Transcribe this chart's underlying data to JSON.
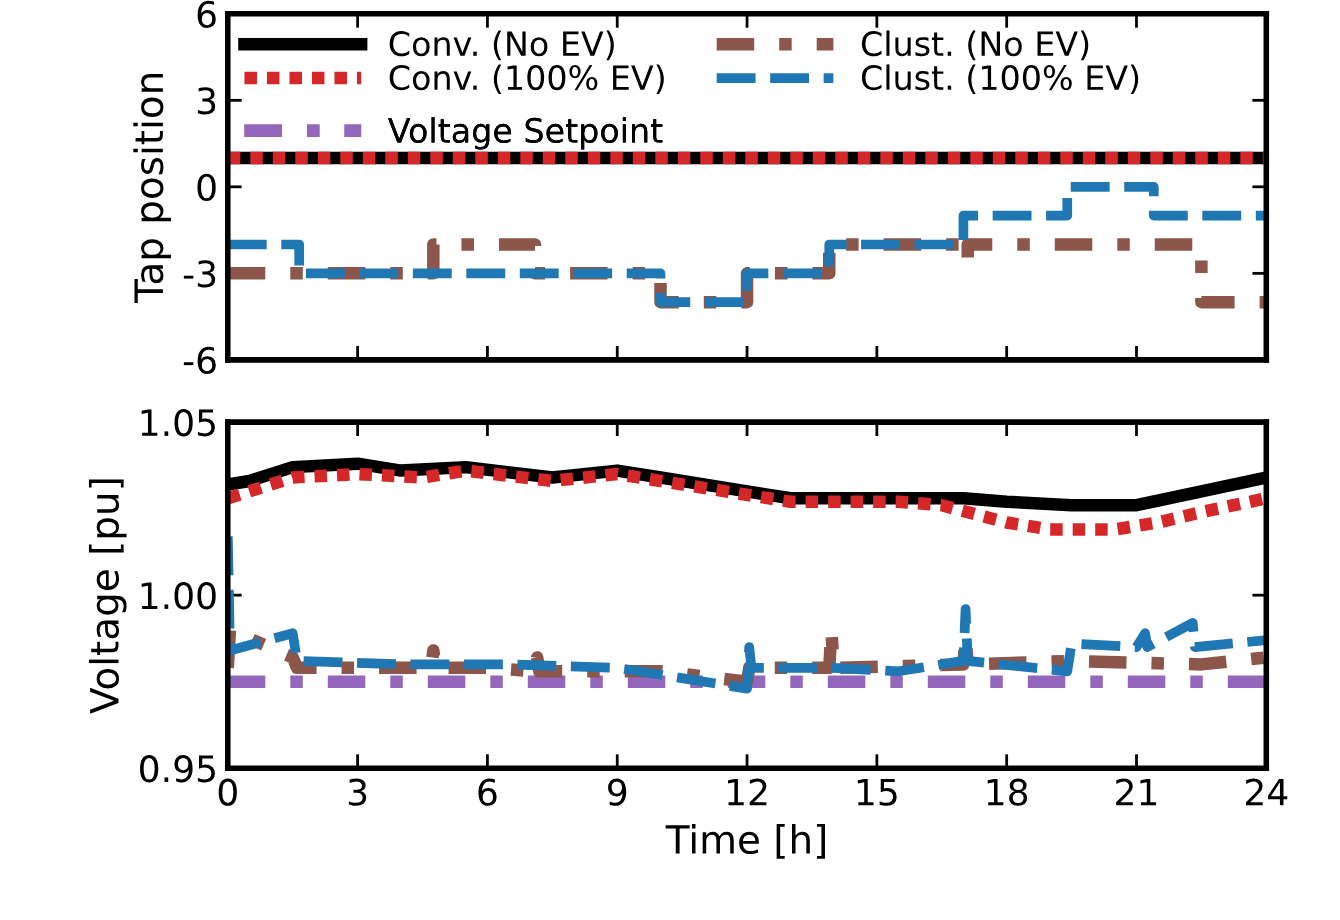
{
  "chart_data": [
    {
      "type": "step",
      "ylabel": "Tap position",
      "xlim": [
        0,
        24
      ],
      "xticks": [
        0,
        3,
        6,
        9,
        12,
        15,
        18,
        21,
        24
      ],
      "ylim": [
        -6,
        6
      ],
      "yticks": [
        -6,
        -3,
        0,
        3,
        6
      ],
      "tick_labels": "y",
      "grid": false,
      "legend": "top",
      "series": [
        {
          "name": "Conv. (No EV)",
          "color": "#000000",
          "line_style": "solid",
          "x": [
            0,
            24
          ],
          "values": [
            1,
            1
          ]
        },
        {
          "name": "Conv. (100% EV)",
          "color": "#d62728",
          "line_style": "dotted",
          "x": [
            0,
            24
          ],
          "values": [
            1,
            1
          ]
        },
        {
          "name": "Clust. (No EV)",
          "color": "#8c564b",
          "line_style": "dashdot",
          "x": [
            0,
            4.75,
            7.1,
            10,
            12,
            13.9,
            17,
            17.1,
            22.5,
            24
          ],
          "values": [
            -3,
            -2,
            -3,
            -4,
            -3,
            -2,
            -2.5,
            -2,
            -4,
            -4
          ]
        },
        {
          "name": "Clust. (100% EV)",
          "color": "#1f77b4",
          "line_style": "dashed",
          "x": [
            0,
            1.65,
            10,
            12,
            13.9,
            17,
            19.4,
            21.4,
            24
          ],
          "values": [
            -2,
            -3,
            -4,
            -3,
            -2,
            -1,
            0,
            -1,
            -1
          ]
        }
      ]
    },
    {
      "type": "line",
      "xlabel": "Time [h]",
      "ylabel": "Voltage [pu]",
      "xlim": [
        0,
        24
      ],
      "xticks": [
        0,
        3,
        6,
        9,
        12,
        15,
        18,
        21,
        24
      ],
      "ylim": [
        0.95,
        1.05
      ],
      "yticks": [
        {
          "value": 0.95,
          "label": "0.95"
        },
        {
          "value": 1.0,
          "label": "1.00"
        },
        {
          "value": 1.05,
          "label": "1.05"
        }
      ],
      "grid": false,
      "legend": "top",
      "series": [
        {
          "name": "Conv. (No EV)",
          "color": "#000000",
          "line_style": "solid",
          "x": [
            0,
            0.5,
            1.5,
            3,
            4,
            5.5,
            7.5,
            9,
            10,
            11.5,
            13,
            15.5,
            17,
            18,
            19.5,
            21,
            22.5,
            24
          ],
          "values": [
            1.032,
            1.033,
            1.037,
            1.038,
            1.036,
            1.037,
            1.034,
            1.036,
            1.034,
            1.031,
            1.028,
            1.028,
            1.028,
            1.027,
            1.026,
            1.026,
            1.03,
            1.034
          ]
        },
        {
          "name": "Conv. (100% EV)",
          "color": "#d62728",
          "line_style": "dotted",
          "x": [
            0,
            1.5,
            3,
            4.5,
            5.5,
            7.5,
            9,
            10,
            11.5,
            13,
            15.5,
            16.5,
            18,
            19,
            20.5,
            21.5,
            22.5,
            24
          ],
          "values": [
            1.028,
            1.034,
            1.035,
            1.034,
            1.036,
            1.033,
            1.035,
            1.033,
            1.03,
            1.027,
            1.027,
            1.026,
            1.021,
            1.019,
            1.019,
            1.021,
            1.024,
            1.028
          ]
        },
        {
          "name": "Voltage Setpoint",
          "color": "#9467bd",
          "line_style": "dashdot",
          "x": [
            0,
            24
          ],
          "values": [
            0.975,
            0.975
          ]
        },
        {
          "name": "Clust. (No EV)",
          "color": "#8c564b",
          "line_style": "dashdot",
          "x": [
            0,
            0.05,
            1.5,
            1.6,
            4.7,
            4.75,
            4.8,
            6,
            7.1,
            7.15,
            7.2,
            10,
            12,
            12.05,
            13.9,
            13.95,
            14,
            17,
            17.05,
            17.1,
            19.5,
            22.5,
            24
          ],
          "values": [
            0.979,
            0.99,
            0.982,
            0.979,
            0.979,
            0.984,
            0.979,
            0.979,
            0.978,
            0.982,
            0.978,
            0.978,
            0.975,
            0.979,
            0.979,
            0.99,
            0.979,
            0.98,
            0.988,
            0.98,
            0.981,
            0.98,
            0.982
          ]
        },
        {
          "name": "Clust. (100% EV)",
          "color": "#1f77b4",
          "line_style": "dashed",
          "x": [
            0,
            0.05,
            1.5,
            1.6,
            4,
            6.5,
            9,
            10,
            12,
            12.05,
            12.1,
            14,
            15.5,
            16.5,
            17,
            17.05,
            17.1,
            19.4,
            19.5,
            21,
            21.2,
            21.25,
            22.3,
            22.35,
            24
          ],
          "values": [
            1.017,
            0.984,
            0.989,
            0.981,
            0.98,
            0.98,
            0.979,
            0.977,
            0.973,
            0.985,
            0.979,
            0.979,
            0.978,
            0.98,
            0.981,
            0.996,
            0.981,
            0.978,
            0.986,
            0.985,
            0.989,
            0.985,
            0.992,
            0.985,
            0.987
          ]
        }
      ]
    }
  ]
}
